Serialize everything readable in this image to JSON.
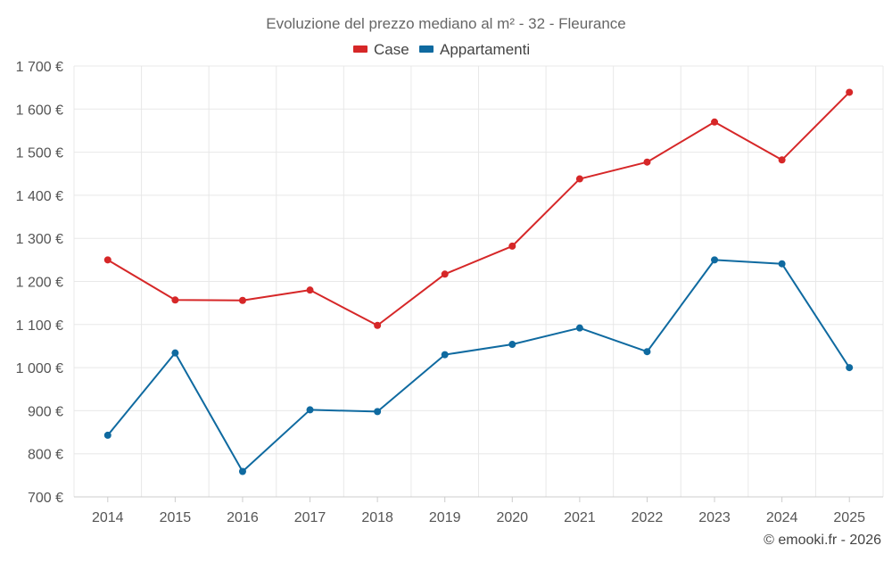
{
  "chart_data": {
    "type": "line",
    "title": "Evoluzione del prezzo mediano al m² - 32 - Fleurance",
    "categories": [
      "2014",
      "2015",
      "2016",
      "2017",
      "2018",
      "2019",
      "2020",
      "2021",
      "2022",
      "2023",
      "2024",
      "2025"
    ],
    "series": [
      {
        "name": "Case",
        "color": "#d62728",
        "values": [
          1250,
          1157,
          1156,
          1180,
          1098,
          1217,
          1282,
          1438,
          1477,
          1570,
          1482,
          1639
        ]
      },
      {
        "name": "Appartamenti",
        "color": "#0f6aa0",
        "values": [
          843,
          1034,
          759,
          902,
          898,
          1030,
          1054,
          1092,
          1037,
          1250,
          1241,
          1000
        ]
      }
    ],
    "ylim": [
      700,
      1700
    ],
    "ytick_step": 100,
    "ytick_labels": [
      "700 €",
      "800 €",
      "900 €",
      "1 000 €",
      "1 100 €",
      "1 200 €",
      "1 300 €",
      "1 400 €",
      "1 500 €",
      "1 600 €",
      "1 700 €"
    ],
    "xlabel": "",
    "ylabel": "",
    "grid": true,
    "legend": "top-center"
  },
  "credit": "© emooki.fr - 2026"
}
